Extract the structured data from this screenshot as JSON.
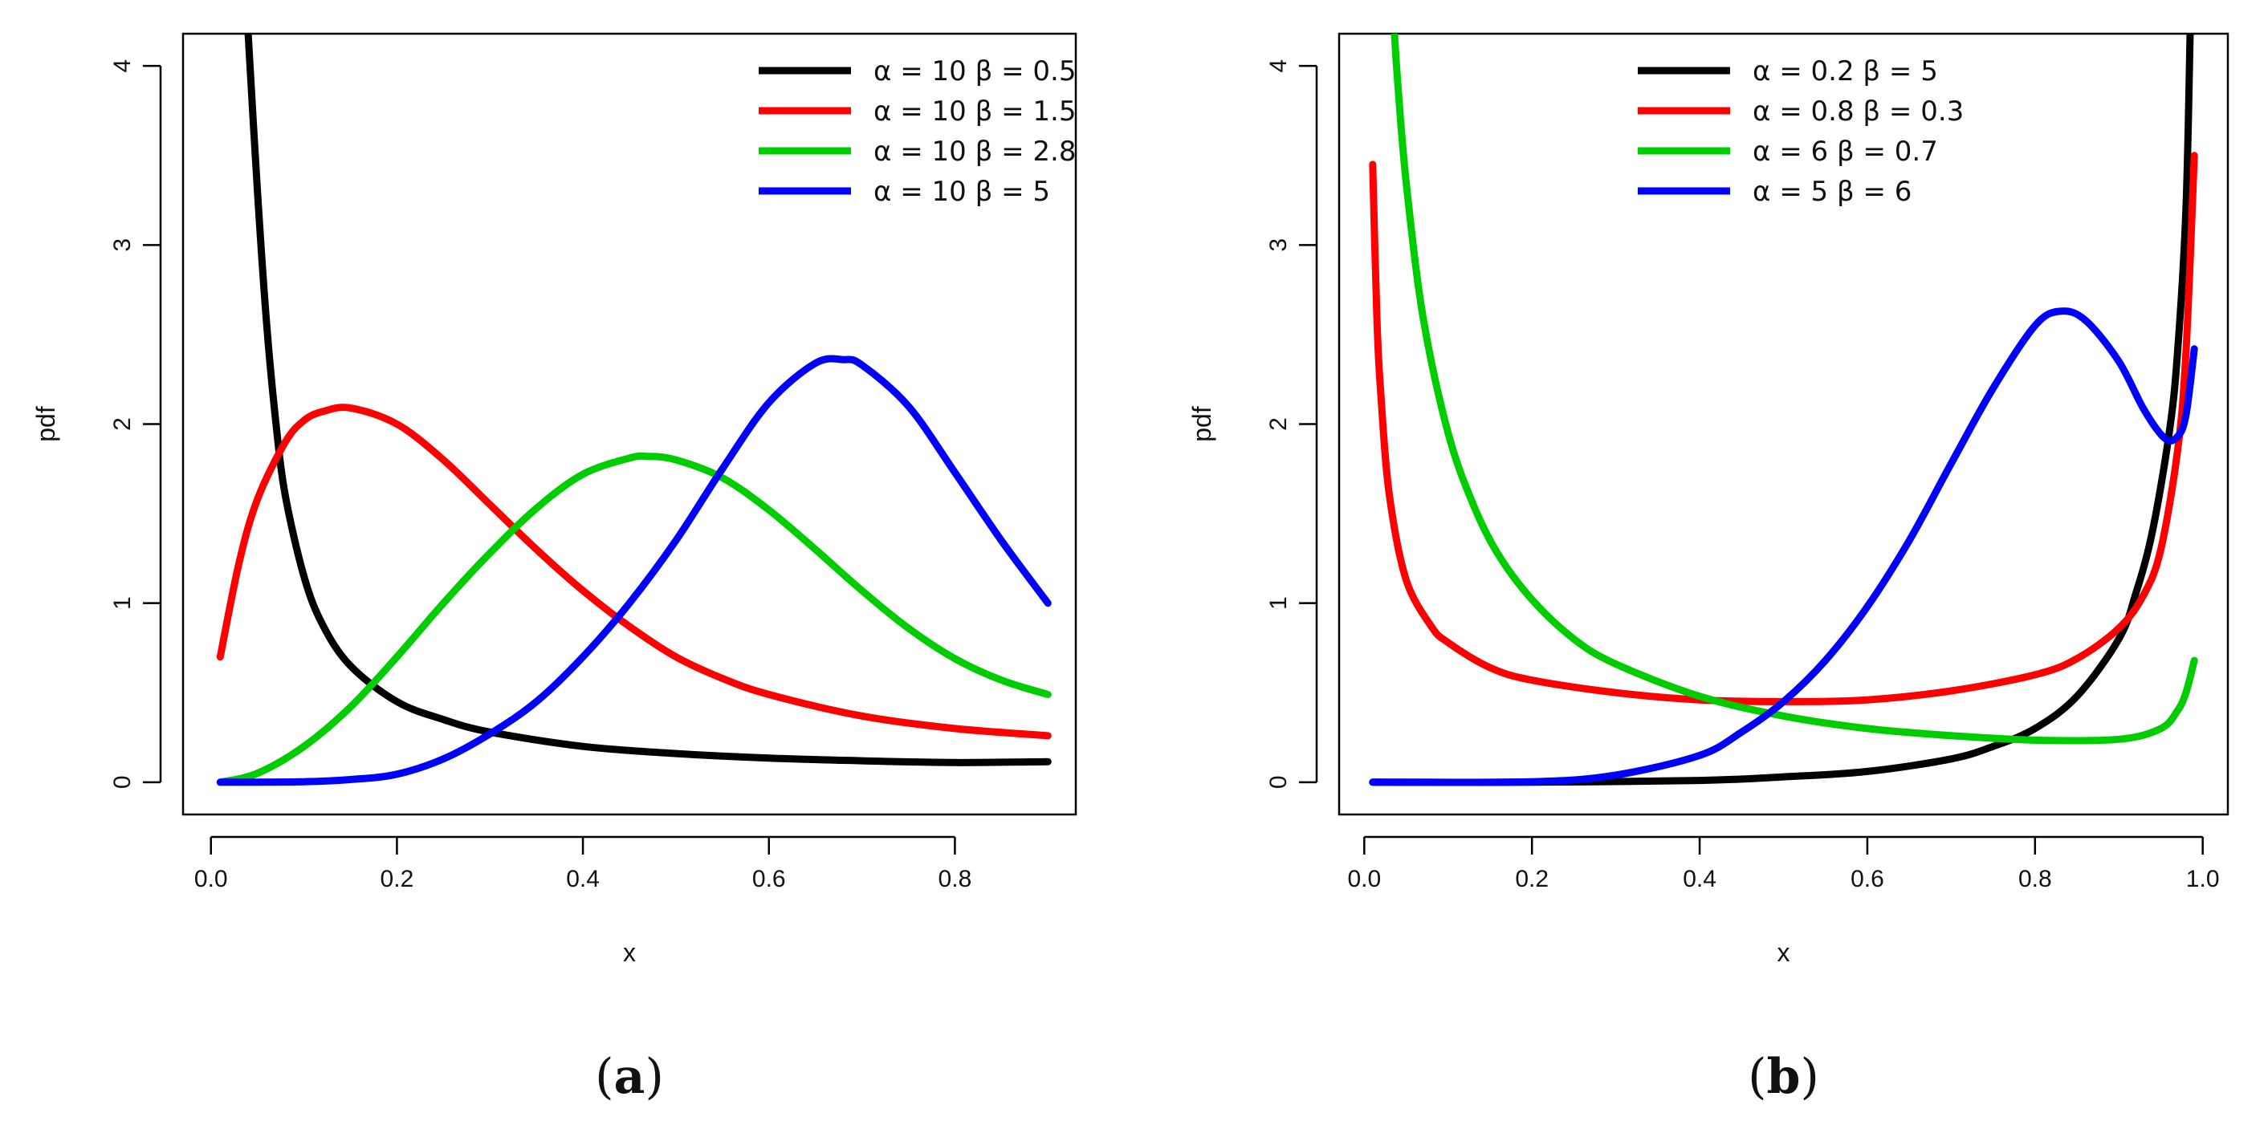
{
  "chart_data": [
    {
      "type": "line",
      "panel_label": "a",
      "caption": {
        "open": "(",
        "letter": "a",
        "close": ")"
      },
      "xlabel": "x",
      "ylabel": "pdf",
      "xlim": [
        -0.03,
        0.93
      ],
      "ylim": [
        -0.18,
        4.18
      ],
      "xticks": [
        0.0,
        0.2,
        0.4,
        0.6,
        0.8
      ],
      "xtick_labels": [
        "0.0",
        "0.2",
        "0.4",
        "0.6",
        "0.8"
      ],
      "yticks": [
        0,
        1,
        2,
        3,
        4
      ],
      "ytick_labels": [
        "0",
        "1",
        "2",
        "3",
        "4"
      ],
      "legend_position": "top-right",
      "series": [
        {
          "name": "α = 10  β = 0.5",
          "color": "#000000",
          "x": [
            0.04,
            0.05,
            0.06,
            0.07,
            0.08,
            0.1,
            0.12,
            0.15,
            0.2,
            0.25,
            0.3,
            0.4,
            0.5,
            0.6,
            0.7,
            0.8,
            0.9
          ],
          "y": [
            4.18,
            3.3,
            2.55,
            2.0,
            1.6,
            1.15,
            0.88,
            0.65,
            0.45,
            0.35,
            0.28,
            0.2,
            0.16,
            0.135,
            0.12,
            0.11,
            0.115
          ]
        },
        {
          "name": "α = 10  β = 1.5",
          "color": "#ff0000",
          "x": [
            0.01,
            0.03,
            0.05,
            0.08,
            0.1,
            0.12,
            0.15,
            0.2,
            0.25,
            0.3,
            0.35,
            0.4,
            0.45,
            0.5,
            0.55,
            0.6,
            0.7,
            0.8,
            0.9
          ],
          "y": [
            0.7,
            1.22,
            1.58,
            1.9,
            2.02,
            2.07,
            2.09,
            2.0,
            1.8,
            1.55,
            1.3,
            1.07,
            0.87,
            0.7,
            0.58,
            0.49,
            0.37,
            0.3,
            0.26
          ]
        },
        {
          "name": "α = 10  β = 2.8",
          "color": "#00cd00",
          "x": [
            0.01,
            0.05,
            0.1,
            0.15,
            0.2,
            0.25,
            0.3,
            0.35,
            0.4,
            0.45,
            0.47,
            0.5,
            0.55,
            0.6,
            0.65,
            0.7,
            0.75,
            0.8,
            0.85,
            0.9
          ],
          "y": [
            0.0,
            0.05,
            0.2,
            0.42,
            0.7,
            1.0,
            1.28,
            1.53,
            1.72,
            1.81,
            1.82,
            1.8,
            1.7,
            1.52,
            1.3,
            1.07,
            0.86,
            0.69,
            0.57,
            0.49
          ]
        },
        {
          "name": "α = 10  β = 5",
          "color": "#0000ff",
          "x": [
            0.01,
            0.1,
            0.15,
            0.2,
            0.25,
            0.3,
            0.35,
            0.4,
            0.45,
            0.5,
            0.55,
            0.6,
            0.65,
            0.68,
            0.7,
            0.75,
            0.8,
            0.85,
            0.9
          ],
          "y": [
            0.0,
            0.003,
            0.015,
            0.045,
            0.13,
            0.27,
            0.45,
            0.7,
            1.0,
            1.35,
            1.75,
            2.12,
            2.34,
            2.36,
            2.33,
            2.1,
            1.73,
            1.35,
            1.0
          ]
        }
      ]
    },
    {
      "type": "line",
      "panel_label": "b",
      "caption": {
        "open": "(",
        "letter": "b",
        "close": ")"
      },
      "xlabel": "x",
      "ylabel": "pdf",
      "xlim": [
        -0.03,
        1.03
      ],
      "ylim": [
        -0.18,
        4.18
      ],
      "xticks": [
        0.0,
        0.2,
        0.4,
        0.6,
        0.8,
        1.0
      ],
      "xtick_labels": [
        "0.0",
        "0.2",
        "0.4",
        "0.6",
        "0.8",
        "1.0"
      ],
      "yticks": [
        0,
        1,
        2,
        3,
        4
      ],
      "ytick_labels": [
        "0",
        "1",
        "2",
        "3",
        "4"
      ],
      "legend_position": "top",
      "series": [
        {
          "name": "α = 0.2  β = 5",
          "color": "#000000",
          "x": [
            0.01,
            0.2,
            0.4,
            0.5,
            0.6,
            0.7,
            0.75,
            0.8,
            0.85,
            0.9,
            0.92,
            0.94,
            0.96,
            0.97,
            0.98,
            0.985
          ],
          "y": [
            0.0,
            0.0,
            0.01,
            0.03,
            0.06,
            0.13,
            0.2,
            0.3,
            0.48,
            0.8,
            1.05,
            1.4,
            1.95,
            2.4,
            3.2,
            4.18
          ]
        },
        {
          "name": "α = 0.8  β = 0.3",
          "color": "#ff0000",
          "x": [
            0.01,
            0.015,
            0.02,
            0.03,
            0.05,
            0.08,
            0.1,
            0.15,
            0.2,
            0.3,
            0.4,
            0.5,
            0.6,
            0.7,
            0.8,
            0.85,
            0.9,
            0.93,
            0.95,
            0.97,
            0.98,
            0.99
          ],
          "y": [
            3.45,
            2.6,
            2.15,
            1.6,
            1.13,
            0.87,
            0.78,
            0.64,
            0.57,
            0.5,
            0.46,
            0.45,
            0.46,
            0.51,
            0.6,
            0.69,
            0.86,
            1.05,
            1.3,
            1.85,
            2.4,
            3.5
          ]
        },
        {
          "name": "α = 6  β = 0.7",
          "color": "#00cd00",
          "x": [
            0.036,
            0.04,
            0.05,
            0.07,
            0.1,
            0.13,
            0.16,
            0.2,
            0.25,
            0.3,
            0.4,
            0.5,
            0.6,
            0.7,
            0.8,
            0.9,
            0.95,
            0.97,
            0.98,
            0.99
          ],
          "y": [
            4.18,
            3.9,
            3.35,
            2.6,
            1.95,
            1.55,
            1.27,
            1.02,
            0.8,
            0.66,
            0.48,
            0.37,
            0.3,
            0.26,
            0.235,
            0.24,
            0.3,
            0.4,
            0.5,
            0.68
          ]
        },
        {
          "name": "α = 5  β = 6",
          "color": "#0000ff",
          "x": [
            0.01,
            0.2,
            0.3,
            0.4,
            0.45,
            0.5,
            0.55,
            0.6,
            0.65,
            0.7,
            0.75,
            0.8,
            0.83,
            0.86,
            0.9,
            0.93,
            0.955,
            0.97,
            0.98,
            0.99
          ],
          "y": [
            0.0,
            0.003,
            0.04,
            0.15,
            0.28,
            0.45,
            0.68,
            0.98,
            1.35,
            1.78,
            2.2,
            2.55,
            2.63,
            2.58,
            2.35,
            2.08,
            1.92,
            1.93,
            2.05,
            2.42
          ]
        }
      ]
    }
  ]
}
